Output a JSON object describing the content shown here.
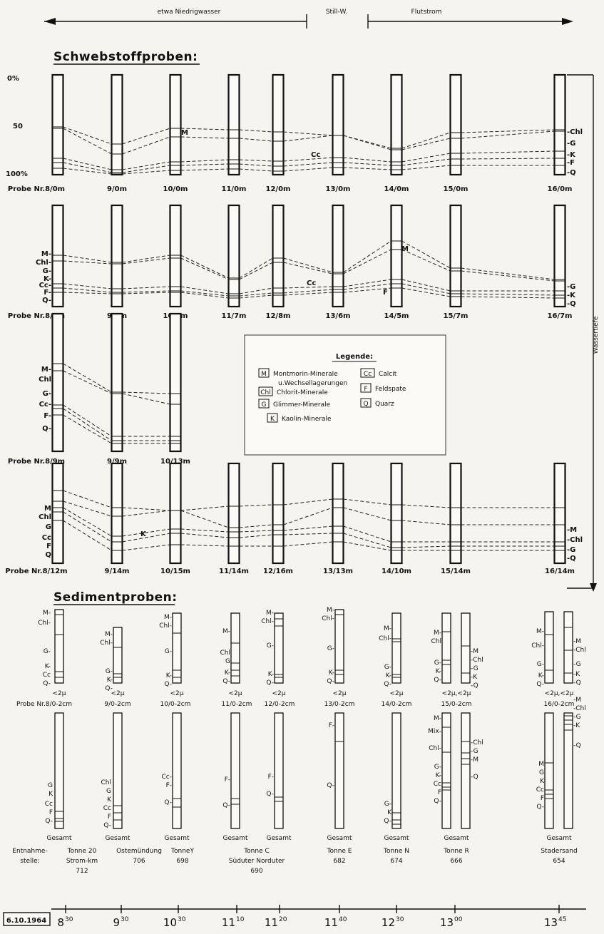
{
  "header": {
    "low_water": "etwa  Niedrigwasser",
    "still_water": "Still-W.",
    "flood_tide": "Flutstrom"
  },
  "sections": {
    "suspended": "Schwebstoffproben:",
    "sediment": "Sedimentproben:"
  },
  "depth_axis": {
    "p0": "0%",
    "p50": "50",
    "p100": "100%",
    "title": "Wassertiefe"
  },
  "legend": {
    "title": "Legende:",
    "entries": [
      {
        "code": "M",
        "text": "Montmorin-Minerale"
      },
      {
        "code": "",
        "text": "u.Wechsellagerungen"
      },
      {
        "code": "Chl",
        "text": "Chlorit-Minerale"
      },
      {
        "code": "G",
        "text": "Glimmer-Minerale"
      },
      {
        "code": "K",
        "text": "Kaolin-Minerale"
      },
      {
        "code": "Cc",
        "text": "Calcit"
      },
      {
        "code": "F",
        "text": "Feldspate"
      },
      {
        "code": "Q",
        "text": "Quarz"
      }
    ]
  },
  "row1": {
    "labels": [
      "Probe Nr.8/0m",
      "9/0m",
      "10/0m",
      "11/0m",
      "12/0m",
      "13/0m",
      "14/0m",
      "15/0m",
      "16/0m"
    ],
    "right": [
      "-Chl",
      "-G",
      "-K",
      "-F",
      "-Q"
    ],
    "inline": [
      "M",
      "Cc"
    ]
  },
  "row2": {
    "labels": [
      "Probe Nr.8/7m",
      "9/4m",
      "10/7m",
      "11/7m",
      "12/8m",
      "13/6m",
      "14/5m",
      "15/7m",
      "16/7m"
    ],
    "left": [
      "M-",
      "Chl-",
      "G-",
      "K-",
      "Cc-",
      "F-",
      "Q-"
    ],
    "right": [
      "-G",
      "-K",
      "-Q"
    ],
    "inline": [
      "M",
      "Cc",
      "F"
    ]
  },
  "row3": {
    "labels": [
      "Probe Nr.8/9m",
      "9/9m",
      "10/13m"
    ],
    "left": [
      "M-",
      "Chl",
      "G-",
      "Cc-",
      "F-",
      "Q-"
    ]
  },
  "row4": {
    "labels": [
      "Probe Nr.8/12m",
      "9/14m",
      "10/15m",
      "11/14m",
      "12/16m",
      "13/13m",
      "14/10m",
      "15/14m",
      "16/14m"
    ],
    "left": [
      "M",
      "Chl",
      "G",
      "Cc",
      "F",
      "Q"
    ],
    "right": [
      "-M",
      "-Chl",
      "-G",
      "-Q"
    ],
    "inline": [
      "K"
    ]
  },
  "sediment_fine": {
    "labels": [
      "Probe Nr.8/0-2cm",
      "9/0-2cm",
      "10/0-2cm",
      "11/0-2cm",
      "12/0-2cm",
      "13/0-2cm",
      "14/0-2cm",
      "15/0-2cm",
      "16/0-2cm"
    ],
    "size": "<2µ",
    "pair_size": "<2µ,<2µ"
  },
  "sediment_total": {
    "label": "Gesamt"
  },
  "stations": [
    {
      "name": "Tonne 20",
      "sub": "Strom-km",
      "km": "712"
    },
    {
      "name": "Ostemündung",
      "sub": "",
      "km": "706"
    },
    {
      "name": "TonneY",
      "sub": "",
      "km": "698"
    },
    {
      "name": "Tonne C",
      "sub": "Süduter   Norduter",
      "km": "690"
    },
    {
      "name": "Tonne E",
      "sub": "",
      "km": "682"
    },
    {
      "name": "Tonne N",
      "sub": "",
      "km": "674"
    },
    {
      "name": "Tonne R",
      "sub": "",
      "km": "666"
    },
    {
      "name": "Stadersand",
      "sub": "",
      "km": "654"
    }
  ],
  "station_head": {
    "a": "Entnahme-",
    "b": "stelle:"
  },
  "timeline": {
    "date": "6.10.1964",
    "times": [
      {
        "h": "8",
        "m": "30"
      },
      {
        "h": "9",
        "m": "30"
      },
      {
        "h": "10",
        "m": "30"
      },
      {
        "h": "11",
        "m": "10"
      },
      {
        "h": "11",
        "m": "20"
      },
      {
        "h": "11",
        "m": "40"
      },
      {
        "h": "12",
        "m": "30"
      },
      {
        "h": "13",
        "m": "00"
      },
      {
        "h": "13",
        "m": "45"
      }
    ]
  }
}
